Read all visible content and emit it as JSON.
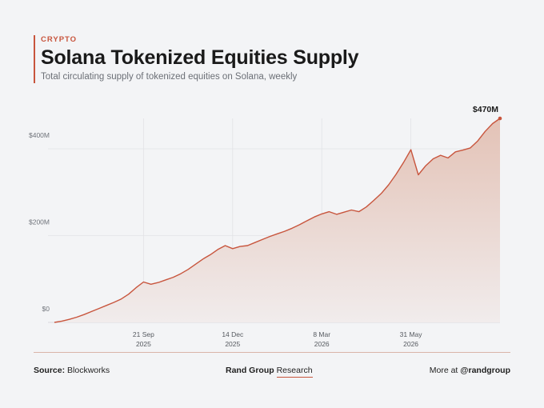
{
  "header": {
    "category": "CRYPTO",
    "title": "Solana Tokenized Equities Supply",
    "subtitle": "Total circulating supply of tokenized equities on Solana, weekly"
  },
  "footer": {
    "source_label": "Source:",
    "source_value": "Blockworks",
    "brand_bold": "Rand Group",
    "brand_light": "Research",
    "more_label": "More at",
    "more_handle": "@randgroup"
  },
  "colors": {
    "line": "#c8553d",
    "area_top": "#e3c2b6",
    "area_bottom": "#f1ecec",
    "grid": "#e2e3e6"
  },
  "chart_data": {
    "type": "area",
    "title": "Solana Tokenized Equities Supply",
    "ylabel": "",
    "xlabel": "",
    "ylim": [
      0,
      470
    ],
    "yticks": [
      {
        "value": 0,
        "label": "$0"
      },
      {
        "value": 200,
        "label": "$200M"
      },
      {
        "value": 400,
        "label": "$400M"
      }
    ],
    "xticks": [
      {
        "week": 12,
        "label": "21 Sep",
        "sublabel": "2025"
      },
      {
        "week": 24,
        "label": "14 Dec",
        "sublabel": "2025"
      },
      {
        "week": 36,
        "label": "8 Mar",
        "sublabel": "2026"
      },
      {
        "week": 48,
        "label": "31 May",
        "sublabel": "2026"
      }
    ],
    "grid": true,
    "end_label": "$470M",
    "series": [
      {
        "values": [
          0,
          3,
          7,
          12,
          18,
          25,
          32,
          39,
          46,
          54,
          65,
          80,
          93,
          88,
          92,
          98,
          104,
          112,
          122,
          134,
          146,
          156,
          168,
          177,
          170,
          175,
          177,
          184,
          191,
          198,
          204,
          210,
          217,
          225,
          234,
          243,
          250,
          255,
          249,
          254,
          259,
          255,
          266,
          281,
          297,
          317,
          341,
          368,
          398,
          340,
          361,
          377,
          385,
          379,
          393,
          397,
          402,
          418,
          440,
          458,
          470
        ]
      }
    ]
  }
}
